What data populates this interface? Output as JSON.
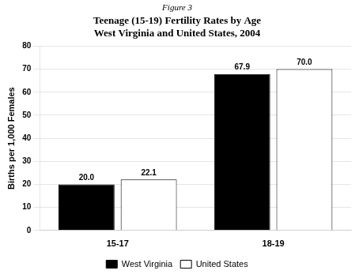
{
  "chart_data": {
    "type": "bar",
    "title": "Figure 3",
    "subtitle": "Teenage (15-19) Fertility Rates by Age\nWest Virginia and United States, 2004",
    "y_label": "Births per 1,000 Females",
    "categories": [
      "15-17",
      "18-19"
    ],
    "series": [
      {
        "name": "West Virginia",
        "color": "#000000",
        "values": [
          20.0,
          67.9
        ],
        "value_labels": [
          "20.0",
          "67.9"
        ]
      },
      {
        "name": "United States",
        "color": "#ffffff",
        "values": [
          22.1,
          70.0
        ],
        "value_labels": [
          "22.1",
          "70.0"
        ]
      }
    ],
    "ylim": [
      0,
      80
    ],
    "yticks": [
      0,
      10,
      20,
      30,
      40,
      50,
      60,
      70,
      80
    ],
    "grid": true,
    "legend": "bottom",
    "data_labels": true
  }
}
